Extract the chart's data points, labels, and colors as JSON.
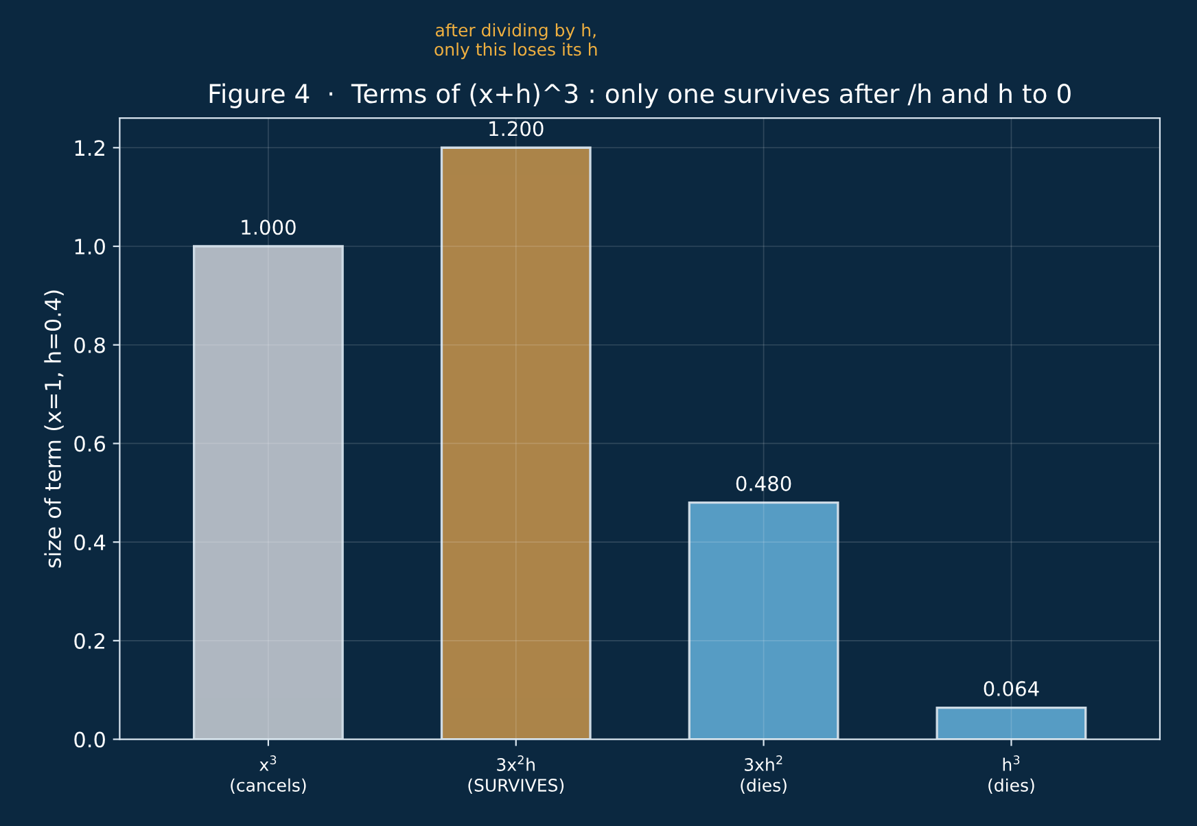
{
  "chart_data": {
    "type": "bar",
    "title": "Figure 4  ·  Terms of (x+h)^3 : only one survives after /h and h to 0",
    "ylabel": "size of term (x=1, h=0.4)",
    "categories": [
      "x$^{3}$\n(cancels)",
      "3x$^{2}$h\n(SURVIVES)",
      "3xh$^{2}$\n(dies)",
      "h$^{3}$\n(dies)"
    ],
    "values": [
      1.0,
      1.2,
      0.48,
      0.064
    ],
    "colors": [
      "#b8bfc8",
      "#b5894a",
      "#5ba3cc",
      "#5ba3cc"
    ],
    "value_labels": [
      "1.000",
      "1.200",
      "0.480",
      "0.064"
    ],
    "annotations": [
      "after dividing by h,\nonly this loses its h"
    ],
    "ylim": [
      0,
      1.26
    ],
    "yticks": [
      {
        "value": 0,
        "label": "0.0"
      },
      0.2,
      0.4,
      0.6,
      0.8,
      {
        "value": 1,
        "label": "1.0"
      },
      1.2
    ],
    "grid": true
  }
}
